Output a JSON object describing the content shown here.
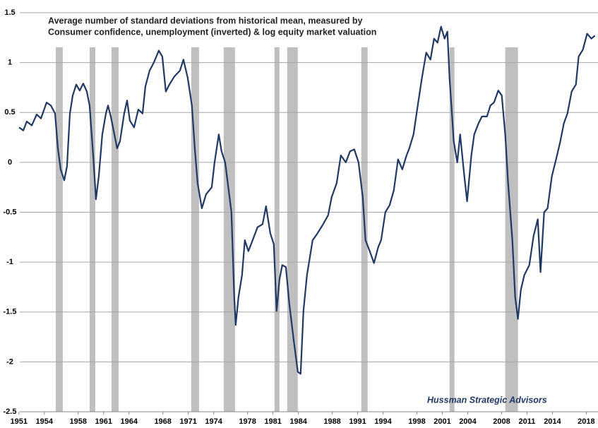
{
  "chart_data": {
    "type": "line",
    "title": [
      "Average number of standard deviations from historical mean, measured by",
      "Consumer confidence, unemployment (inverted) & log equity market valuation"
    ],
    "annotation": "Hussman Strategic Advisors",
    "x": [
      1951.02,
      1951.52,
      1951.93,
      1952.52,
      1953.1,
      1953.6,
      1954.27,
      1954.77,
      1955.27,
      1955.6,
      1955.93,
      1956.35,
      1956.68,
      1957.02,
      1957.35,
      1957.77,
      1958.18,
      1958.6,
      1959.02,
      1959.35,
      1959.77,
      1960.1,
      1960.43,
      1960.85,
      1961.27,
      1961.52,
      1961.85,
      1962.27,
      1962.6,
      1962.93,
      1963.43,
      1963.77,
      1964.1,
      1964.6,
      1965.1,
      1965.6,
      1965.93,
      1966.43,
      1966.93,
      1967.52,
      1967.93,
      1968.35,
      1968.77,
      1969.35,
      1970.02,
      1970.43,
      1970.93,
      1971.43,
      1971.77,
      1972.1,
      1972.6,
      1973.1,
      1973.77,
      1974.1,
      1974.6,
      1974.93,
      1975.35,
      1975.77,
      1976.1,
      1976.43,
      1976.6,
      1976.93,
      1977.35,
      1977.68,
      1978.1,
      1978.6,
      1979.18,
      1979.77,
      1980.18,
      1980.68,
      1981.1,
      1981.43,
      1981.77,
      1982.1,
      1982.52,
      1982.93,
      1983.43,
      1983.93,
      1984.27,
      1984.6,
      1985.02,
      1985.68,
      1986.27,
      1986.93,
      1987.52,
      1987.93,
      1988.52,
      1989.02,
      1989.6,
      1990.1,
      1990.6,
      1991.1,
      1991.6,
      1991.93,
      1992.43,
      1992.93,
      1993.43,
      1993.77,
      1994.27,
      1994.77,
      1995.27,
      1995.77,
      1996.27,
      1996.77,
      1997.1,
      1997.6,
      1998.1,
      1998.6,
      1999.1,
      1999.6,
      2000.02,
      2000.43,
      2000.85,
      2001.27,
      2001.6,
      2001.85,
      2002.35,
      2002.77,
      2003.1,
      2003.6,
      2003.93,
      2004.43,
      2004.77,
      2005.27,
      2005.68,
      2006.27,
      2006.68,
      2007.1,
      2007.6,
      2008.02,
      2008.43,
      2008.77,
      2009.27,
      2009.6,
      2009.93,
      2010.27,
      2010.68,
      2011.27,
      2011.77,
      2012.27,
      2012.6,
      2013.02,
      2013.43,
      2013.93,
      2014.43,
      2014.93,
      2015.35,
      2015.77,
      2016.27,
      2016.77,
      2017.1,
      2017.6,
      2018.1,
      2018.6,
      2019.02
    ],
    "series": [
      {
        "color": "#1f3864",
        "values": [
          0.35,
          0.32,
          0.41,
          0.37,
          0.48,
          0.44,
          0.6,
          0.57,
          0.49,
          0.14,
          -0.07,
          -0.18,
          -0.04,
          0.49,
          0.67,
          0.78,
          0.72,
          0.79,
          0.71,
          0.57,
          0.07,
          -0.37,
          -0.14,
          0.28,
          0.49,
          0.57,
          0.46,
          0.28,
          0.14,
          0.21,
          0.49,
          0.62,
          0.42,
          0.35,
          0.53,
          0.49,
          0.76,
          0.92,
          1.0,
          1.12,
          1.06,
          0.71,
          0.78,
          0.86,
          0.92,
          1.03,
          0.85,
          0.57,
          0.14,
          -0.21,
          -0.46,
          -0.32,
          -0.25,
          0.0,
          0.28,
          0.11,
          0.0,
          -0.28,
          -0.5,
          -1.35,
          -1.63,
          -1.35,
          -1.13,
          -0.78,
          -0.89,
          -0.78,
          -0.65,
          -0.62,
          -0.44,
          -0.71,
          -0.82,
          -1.49,
          -1.17,
          -1.03,
          -1.05,
          -1.42,
          -1.77,
          -2.1,
          -2.12,
          -1.49,
          -1.13,
          -0.78,
          -0.71,
          -0.62,
          -0.53,
          -0.35,
          -0.21,
          0.07,
          0.0,
          0.11,
          0.13,
          0.0,
          -0.35,
          -0.78,
          -0.89,
          -1.01,
          -0.85,
          -0.78,
          -0.5,
          -0.43,
          -0.28,
          0.03,
          -0.07,
          0.07,
          0.14,
          0.28,
          0.57,
          0.85,
          1.1,
          1.03,
          1.24,
          1.2,
          1.36,
          1.24,
          1.31,
          0.85,
          0.21,
          0.0,
          0.28,
          -0.14,
          -0.39,
          0.07,
          0.28,
          0.39,
          0.46,
          0.46,
          0.57,
          0.6,
          0.72,
          0.67,
          0.28,
          -0.21,
          -0.78,
          -1.35,
          -1.57,
          -1.28,
          -1.13,
          -1.03,
          -0.74,
          -0.57,
          -1.1,
          -0.5,
          -0.46,
          -0.14,
          0.03,
          0.21,
          0.39,
          0.49,
          0.71,
          0.78,
          1.06,
          1.13,
          1.29,
          1.24,
          1.27
        ]
      }
    ],
    "recessions": [
      [
        1955.35,
        1956.18
      ],
      [
        1959.35,
        1960.02
      ],
      [
        1961.93,
        1962.77
      ],
      [
        1971.35,
        1972.27
      ],
      [
        1975.18,
        1976.52
      ],
      [
        1981.18,
        1981.77
      ],
      [
        1982.68,
        1983.93
      ],
      [
        1991.43,
        1992.18
      ],
      [
        2001.85,
        2002.43
      ],
      [
        2008.43,
        2009.93
      ]
    ],
    "recession_color": "#bfbfbf",
    "xlim": [
      1949.6,
      2019.3
    ],
    "ylim": [
      -2.5,
      1.5
    ],
    "xticks": [
      1951,
      1954,
      1958,
      1961,
      1964,
      1968,
      1971,
      1974,
      1978,
      1981,
      1984,
      1988,
      1991,
      1994,
      1998,
      2001,
      2004,
      2008,
      2011,
      2014,
      2018
    ],
    "yticks": [
      -2.5,
      -2,
      -1.5,
      -1,
      -0.5,
      0,
      0.5,
      1,
      1.5
    ],
    "grid": true
  }
}
